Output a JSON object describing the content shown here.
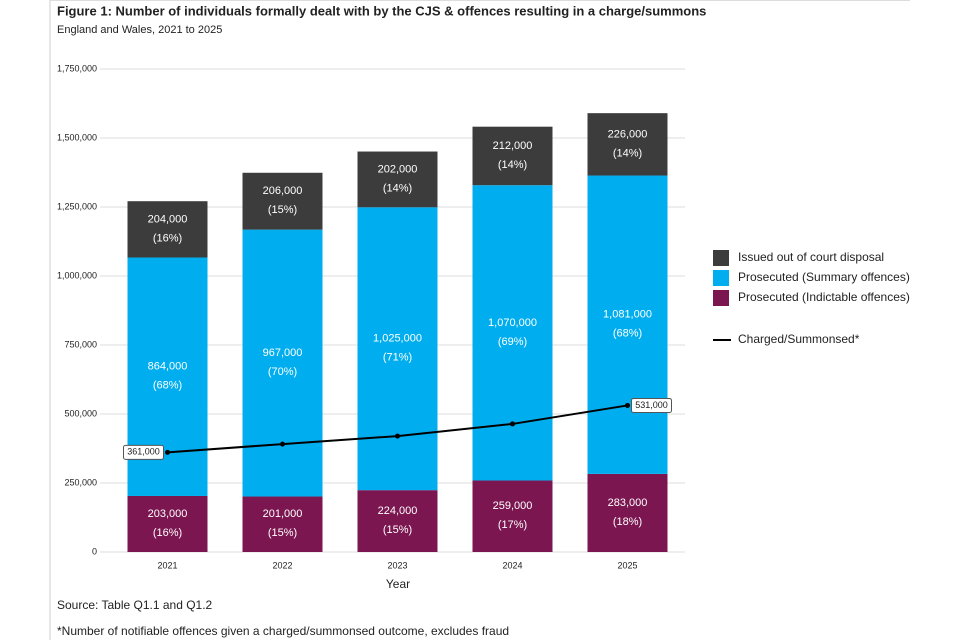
{
  "chart_data": {
    "type": "bar",
    "title": "Figure 1: Number of individuals formally dealt with by the CJS & offences resulting in a charge/summons",
    "subtitle": "England and Wales, 2021 to 2025",
    "x_label": "Year",
    "source": "Source: Table Q1.1 and Q1.2",
    "footnote": "*Number of notifiable offences given a charged/summonsed outcome, excludes fraud",
    "categories": [
      "2021",
      "2022",
      "2023",
      "2024",
      "2025"
    ],
    "stacked": true,
    "series": [
      {
        "name": "Prosecuted (Indictable offences)",
        "color": "#7b1650",
        "values": [
          203000,
          201000,
          224000,
          259000,
          283000
        ],
        "value_labels": [
          "203,000",
          "201,000",
          "224,000",
          "259,000",
          "283,000"
        ],
        "share_labels": [
          "(16%)",
          "(15%)",
          "(15%)",
          "(17%)",
          "(18%)"
        ]
      },
      {
        "name": "Prosecuted (Summary offences)",
        "color": "#00aeef",
        "values": [
          864000,
          967000,
          1025000,
          1070000,
          1081000
        ],
        "value_labels": [
          "864,000",
          "967,000",
          "1,025,000",
          "1,070,000",
          "1,081,000"
        ],
        "share_labels": [
          "(68%)",
          "(70%)",
          "(71%)",
          "(69%)",
          "(68%)"
        ]
      },
      {
        "name": "Issued out of court disposal",
        "color": "#3c3c3c",
        "values": [
          204000,
          206000,
          202000,
          212000,
          226000
        ],
        "value_labels": [
          "204,000",
          "206,000",
          "202,000",
          "212,000",
          "226,000"
        ],
        "share_labels": [
          "(16%)",
          "(15%)",
          "(14%)",
          "(14%)",
          "(14%)"
        ]
      }
    ],
    "line": {
      "name": "Charged/Summonsed*",
      "color": "#000000",
      "values": [
        361000,
        391000,
        420000,
        464000,
        531000
      ],
      "value_labels": [
        "361,000",
        null,
        null,
        null,
        "531,000"
      ]
    },
    "ylim": [
      0,
      1750000
    ],
    "yticks": [
      0,
      {
        "value": 250000,
        "label": "250,000"
      },
      {
        "value": 500000,
        "label": "500,000"
      },
      {
        "value": 750000,
        "label": "750,000"
      },
      {
        "value": 1000000,
        "label": "1,000,000"
      },
      {
        "value": 1250000,
        "label": "1,250,000"
      },
      {
        "value": 1500000,
        "label": "1,500,000"
      },
      {
        "value": 1750000,
        "label": "1,750,000"
      }
    ],
    "grid": true,
    "legend": "right"
  }
}
